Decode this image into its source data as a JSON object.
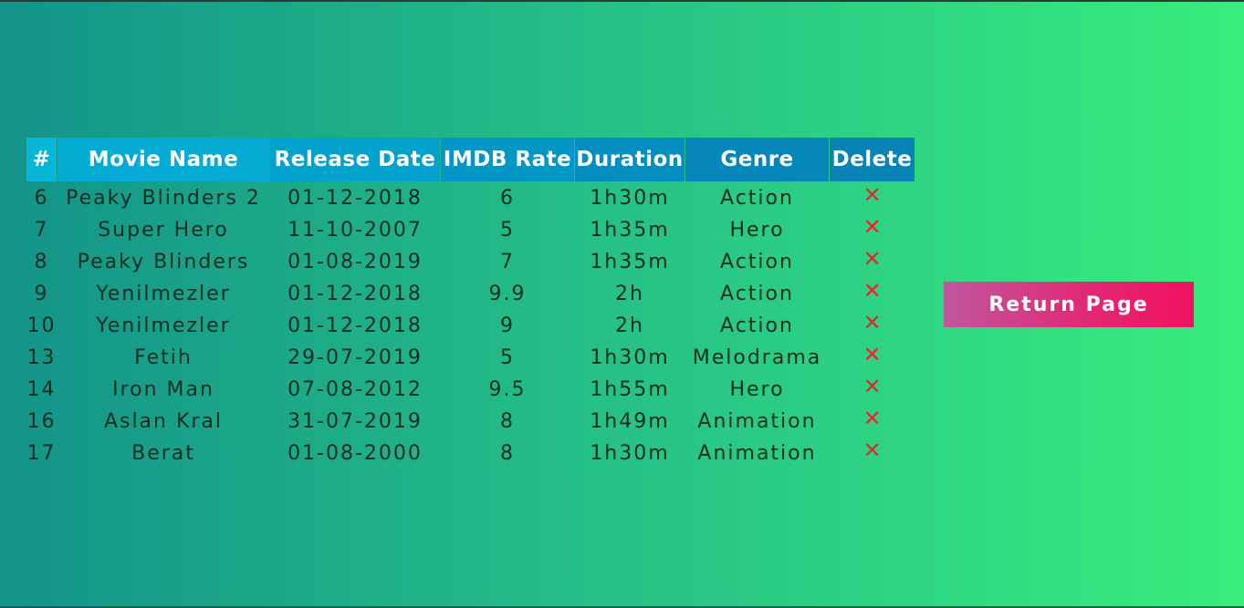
{
  "table": {
    "headers": [
      "#",
      "Movie Name",
      "Release Date",
      "IMDB Rate",
      "Duration",
      "Genre",
      "Delete"
    ],
    "rows": [
      {
        "id": "6",
        "name": "Peaky Blinders 2",
        "release_date": "01-12-2018",
        "imdb_rate": "6",
        "duration": "1h30m",
        "genre": "Action",
        "delete": "✕"
      },
      {
        "id": "7",
        "name": "Super Hero",
        "release_date": "11-10-2007",
        "imdb_rate": "5",
        "duration": "1h35m",
        "genre": "Hero",
        "delete": "✕"
      },
      {
        "id": "8",
        "name": "Peaky Blinders",
        "release_date": "01-08-2019",
        "imdb_rate": "7",
        "duration": "1h35m",
        "genre": "Action",
        "delete": "✕"
      },
      {
        "id": "9",
        "name": "Yenilmezler",
        "release_date": "01-12-2018",
        "imdb_rate": "9.9",
        "duration": "2h",
        "genre": "Action",
        "delete": "✕"
      },
      {
        "id": "10",
        "name": "Yenilmezler",
        "release_date": "01-12-2018",
        "imdb_rate": "9",
        "duration": "2h",
        "genre": "Action",
        "delete": "✕"
      },
      {
        "id": "13",
        "name": "Fetih",
        "release_date": "29-07-2019",
        "imdb_rate": "5",
        "duration": "1h30m",
        "genre": "Melodrama",
        "delete": "✕"
      },
      {
        "id": "14",
        "name": "Iron Man",
        "release_date": "07-08-2012",
        "imdb_rate": "9.5",
        "duration": "1h55m",
        "genre": "Hero",
        "delete": "✕"
      },
      {
        "id": "16",
        "name": "Aslan Kral",
        "release_date": "31-07-2019",
        "imdb_rate": "8",
        "duration": "1h49m",
        "genre": "Animation",
        "delete": "✕"
      },
      {
        "id": "17",
        "name": "Berat",
        "release_date": "01-08-2000",
        "imdb_rate": "8",
        "duration": "1h30m",
        "genre": "Animation",
        "delete": "✕"
      }
    ]
  },
  "return_button": {
    "label": "Return Page"
  },
  "colors": {
    "header_accent": "#03a2cd",
    "delete_icon": "#e8242d",
    "button_gradient_start": "#c1579b",
    "button_gradient_end": "#f2115f"
  }
}
